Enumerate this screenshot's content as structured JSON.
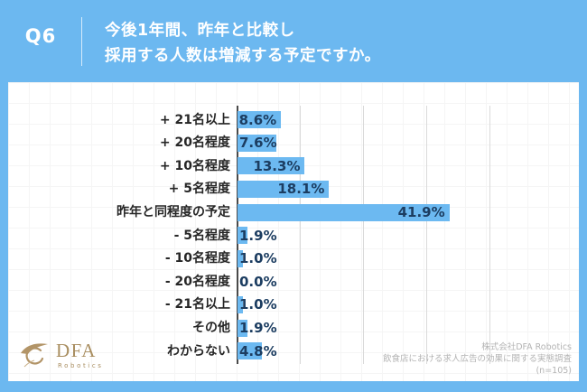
{
  "header": {
    "question_number": "Q6",
    "question_line1": "今後1年間、昨年と比較し",
    "question_line2": "採用する人数は増減する予定ですか。"
  },
  "chart_data": {
    "type": "bar",
    "orientation": "horizontal",
    "title": "今後1年間、昨年と比較し採用する人数は増減する予定ですか。",
    "categories": [
      "+ 21名以上",
      "+ 20名程度",
      "+ 10名程度",
      "+ 5名程度",
      "昨年と同程度の予定",
      "- 5名程度",
      "- 10名程度",
      "- 20名程度",
      "- 21名以上",
      "その他",
      "わからない"
    ],
    "values": [
      8.6,
      7.6,
      13.3,
      18.1,
      41.9,
      1.9,
      1.0,
      0.0,
      1.0,
      1.9,
      4.8
    ],
    "value_labels": [
      "8.6%",
      "7.6%",
      "13.3%",
      "18.1%",
      "41.9%",
      "1.9%",
      "1.0%",
      "0.0%",
      "1.0%",
      "1.9%",
      "4.8%"
    ],
    "xlim": [
      0,
      50
    ],
    "grid": true,
    "grid_divisions": 4,
    "legend": "none",
    "bar_color": "#6cb9f1",
    "value_text_color": "#1c3d61",
    "gridline_color": "#dadada",
    "axis_color": "#4a4a4a"
  },
  "footer": {
    "company": "株式会社DFA Robotics",
    "survey": "飲食店における求人広告の効果に関する実態調査",
    "sample": "(n=105)"
  },
  "logo": {
    "name": "DFA",
    "sub": "Robotics",
    "color": "#a98e60"
  },
  "colors": {
    "background_blue": "#6cb8f0",
    "panel_white": "#ffffff",
    "header_text": "#ffffff",
    "category_text": "#262626"
  }
}
